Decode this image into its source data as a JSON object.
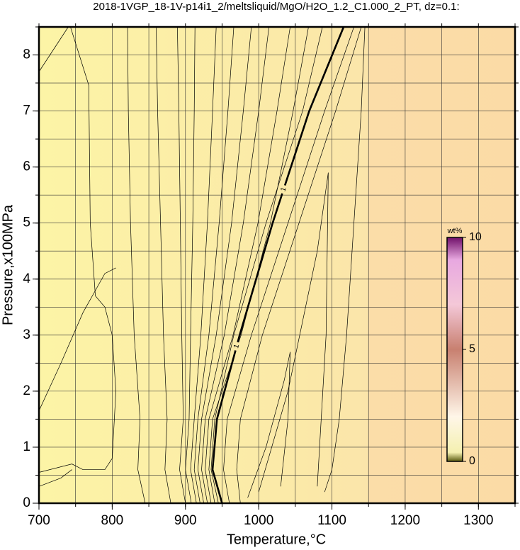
{
  "chart_data": {
    "type": "contour",
    "title": "2018-1VGP_18-1V-p14i1_2/meltsliquid/MgO/H2O_1.2_C1.000_2_PT, dz=0.1:",
    "x_label": "Temperature,°C",
    "y_label": "Pressure,x100MPa",
    "xlim": [
      700,
      1350
    ],
    "ylim": [
      0,
      8.5
    ],
    "xticks": [
      700,
      800,
      900,
      1000,
      1100,
      1200,
      1300
    ],
    "yticks": [
      0,
      1,
      2,
      3,
      4,
      5,
      6,
      7,
      8
    ],
    "xgrid": [
      700,
      750,
      800,
      850,
      900,
      950,
      1000,
      1050,
      1100,
      1150,
      1200,
      1250,
      1300,
      1350
    ],
    "ygrid": [
      0,
      0.5,
      1,
      1.5,
      2,
      2.5,
      3,
      3.5,
      4,
      4.5,
      5,
      5.5,
      6,
      6.5,
      7,
      7.5,
      8,
      8.5
    ],
    "contours": [
      {
        "x": [
          700,
          720,
          740
        ],
        "y": [
          7.7,
          8.1,
          8.5
        ]
      },
      {
        "x": [
          700,
          745,
          760,
          790,
          800,
          805,
          800,
          790,
          777,
          770,
          768,
          743
        ],
        "y": [
          0.55,
          0.7,
          0.6,
          0.6,
          0.8,
          2,
          3,
          3.5,
          3.7,
          5,
          7.46,
          8.5
        ]
      },
      {
        "x": [
          700,
          730,
          745
        ],
        "y": [
          0.3,
          0.45,
          0.6
        ]
      },
      {
        "x": [
          700,
          730,
          760,
          790,
          805
        ],
        "y": [
          1.65,
          2.5,
          3.4,
          4.1,
          4.2
        ]
      },
      {
        "x": [
          845,
          835,
          838,
          830,
          825,
          822,
          821
        ],
        "y": [
          0,
          0.6,
          1.5,
          3,
          5,
          7,
          8.5
        ]
      },
      {
        "x": [
          880,
          872,
          875,
          870,
          866,
          862,
          860
        ],
        "y": [
          0,
          0.6,
          1.5,
          3,
          5,
          7,
          8.5
        ]
      },
      {
        "x": [
          900,
          892,
          897,
          895,
          893,
          891,
          889
        ],
        "y": [
          0,
          0.6,
          1.5,
          3,
          5,
          7,
          8.5
        ]
      },
      {
        "x": [
          908,
          900,
          905,
          907,
          910,
          912,
          913
        ],
        "y": [
          0,
          0.6,
          1.5,
          3,
          5,
          7,
          8.5
        ]
      },
      {
        "x": [
          915,
          907,
          912,
          921,
          930,
          937,
          942
        ],
        "y": [
          0,
          0.6,
          1.5,
          3,
          5,
          7,
          8.5
        ]
      },
      {
        "x": [
          920,
          912,
          917,
          932,
          946,
          958,
          966
        ],
        "y": [
          0,
          0.6,
          1.5,
          3,
          5,
          7,
          8.5
        ]
      },
      {
        "x": [
          925,
          917,
          922,
          942,
          963,
          979,
          990
        ],
        "y": [
          0,
          0.6,
          1.5,
          3,
          5,
          7,
          8.5
        ]
      },
      {
        "x": [
          930,
          922,
          927,
          953,
          979,
          1000,
          1014
        ],
        "y": [
          0,
          0.6,
          1.5,
          3,
          5,
          7,
          8.5
        ]
      },
      {
        "x": [
          935,
          927,
          932,
          965,
          999,
          1025,
          1043
        ],
        "y": [
          0,
          0.6,
          1.5,
          3,
          5,
          7,
          8.5
        ]
      },
      {
        "x": [
          940,
          932,
          937,
          976,
          1016,
          1047,
          1068
        ],
        "y": [
          0,
          0.6,
          1.5,
          3,
          5,
          7,
          8.5
        ]
      },
      {
        "x": [
          945,
          935,
          940,
          966,
          1010,
          1060,
          1087
        ],
        "y": [
          0,
          0.6,
          1.5,
          3,
          5,
          7,
          8.5
        ]
      },
      {
        "level": 1,
        "x": [
          950,
          937,
          943,
          974,
          1019,
          1069,
          1116
        ],
        "y": [
          0,
          0.6,
          1.5,
          3,
          5,
          7,
          8.5
        ]
      },
      {
        "x": [
          960,
          952,
          957,
          990,
          1040,
          1090,
          1130
        ],
        "y": [
          0,
          0.6,
          1.5,
          3,
          5,
          7,
          8.5
        ]
      },
      {
        "x": [
          975,
          970,
          975,
          1005,
          1055,
          1105,
          1140
        ],
        "y": [
          0,
          0.6,
          1.5,
          3,
          5,
          7,
          8.5
        ]
      },
      {
        "x": [
          1090,
          1100,
          1110,
          1120,
          1130,
          1140,
          1145
        ],
        "y": [
          0.2,
          0.6,
          1.5,
          3,
          5,
          7,
          8.5
        ]
      },
      {
        "x": [
          985,
          1010,
          1035,
          1043,
          1040,
          1030
        ],
        "y": [
          0.1,
          1,
          2.2,
          2.7,
          1.5,
          0.3
        ]
      },
      {
        "x": [
          1000,
          1040,
          1080,
          1095,
          1092,
          1080
        ],
        "y": [
          0.2,
          2,
          4.5,
          5.9,
          3,
          0.3
        ]
      }
    ],
    "contour_label_at": [
      5.6,
      2.8
    ],
    "colorbar": {
      "label": "wt%",
      "lim": [
        0,
        10
      ],
      "ticks": [
        0,
        5,
        10
      ]
    }
  }
}
